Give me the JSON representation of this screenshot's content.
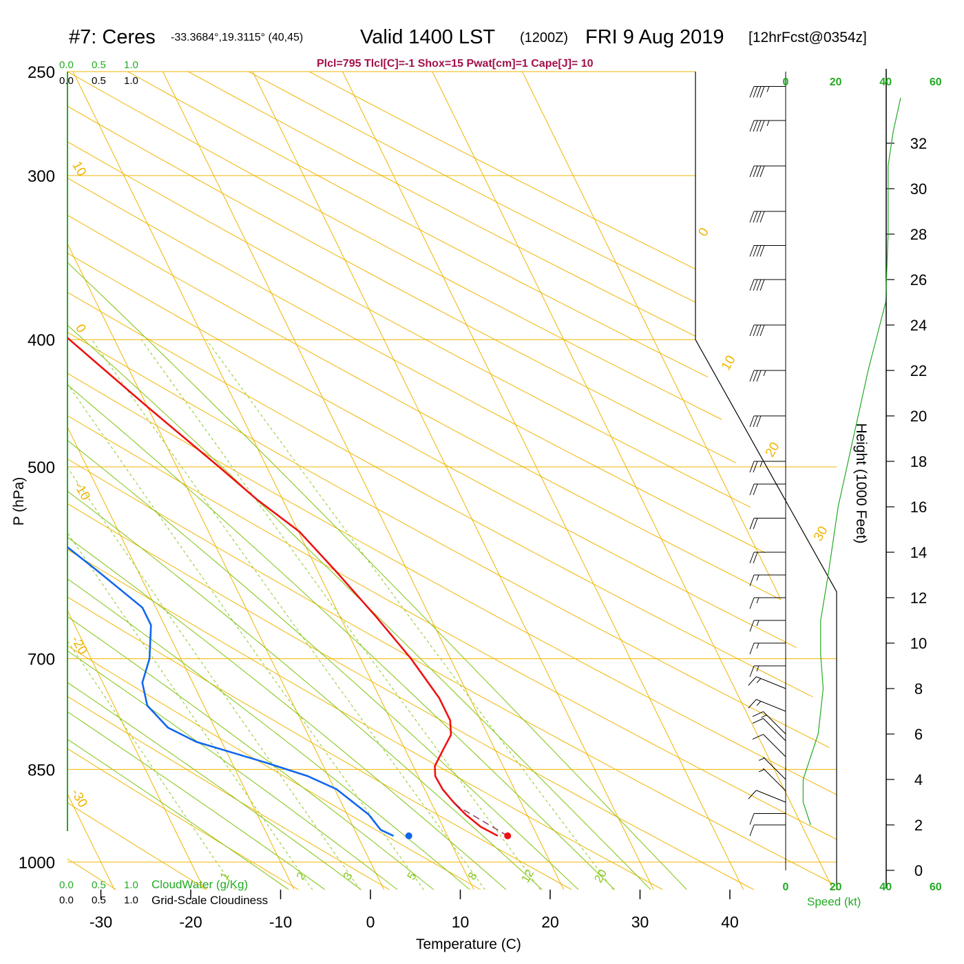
{
  "header": {
    "station": "#7: Ceres",
    "coords": "-33.3684°,19.3115° (40,45)",
    "valid": "Valid 1400 LST",
    "utc": "(1200Z)",
    "date": "FRI 9 Aug 2019",
    "forecast": "[12hrFcst@0354z]",
    "indices": "Plcl=795 Tlcl[C]=-1 Shox=15 Pwat[cm]=1 Cape[J]= 10"
  },
  "cloud_scale": {
    "ticks": [
      "0.0",
      "0.5",
      "1.0"
    ],
    "cloudwater_label": "CloudWater (g/Kg)",
    "cloudiness_label": "Grid-Scale Cloudiness"
  },
  "colors": {
    "temperature": "#ee1111",
    "dewpoint": "#1166ee",
    "isotherm_adiabat": "#f0b400",
    "moist_adiabat_mixing": "#88c820",
    "cloud_axis": "#22aa22",
    "wind_profile": "#22aa22",
    "barb": "#000000",
    "parcel": "#802050"
  },
  "chart_data": {
    "type": "skew-t",
    "xlabel": "Temperature (C)",
    "ylabel": "P (hPa)",
    "x_ticks": [
      -30,
      -20,
      -10,
      0,
      10,
      20,
      30,
      40
    ],
    "pressure_ticks": [
      250,
      300,
      400,
      500,
      700,
      850,
      1000
    ],
    "isobars": [
      250,
      300,
      400,
      500,
      700,
      850,
      1000
    ],
    "dry_adiabat_labels": [
      "10",
      "0",
      "-10",
      "-20",
      "-30",
      "0",
      "10",
      "20",
      "30"
    ],
    "mixing_ratio_labels": [
      "1",
      "2",
      "3",
      "5",
      "8",
      "12",
      "20"
    ],
    "temperature_profile": [
      {
        "p": 955,
        "t": 15.6
      },
      {
        "p": 940,
        "t": 14.2
      },
      {
        "p": 920,
        "t": 13.2
      },
      {
        "p": 900,
        "t": 12.5
      },
      {
        "p": 880,
        "t": 12.0
      },
      {
        "p": 860,
        "t": 11.9
      },
      {
        "p": 845,
        "t": 12.4
      },
      {
        "p": 820,
        "t": 14.3
      },
      {
        "p": 800,
        "t": 15.9
      },
      {
        "p": 780,
        "t": 16.6
      },
      {
        "p": 750,
        "t": 16.6
      },
      {
        "p": 700,
        "t": 15.6
      },
      {
        "p": 650,
        "t": 14.0
      },
      {
        "p": 600,
        "t": 12.0
      },
      {
        "p": 560,
        "t": 10.1
      },
      {
        "p": 530,
        "t": 7.2
      },
      {
        "p": 500,
        "t": 4.7
      },
      {
        "p": 450,
        "t": 0.0
      },
      {
        "p": 400,
        "t": -5.0
      },
      {
        "p": 350,
        "t": -10.3
      },
      {
        "p": 300,
        "t": -16.9
      },
      {
        "p": 275,
        "t": -20.7
      },
      {
        "p": 250,
        "t": -24.0
      }
    ],
    "dewpoint_profile": [
      {
        "p": 955,
        "td": 4.0
      },
      {
        "p": 945,
        "td": 2.9
      },
      {
        "p": 920,
        "td": 2.4
      },
      {
        "p": 880,
        "td": 0.2
      },
      {
        "p": 860,
        "td": -2.3
      },
      {
        "p": 840,
        "td": -6.2
      },
      {
        "p": 810,
        "td": -12.8
      },
      {
        "p": 790,
        "td": -15.2
      },
      {
        "p": 760,
        "td": -16.3
      },
      {
        "p": 730,
        "td": -15.6
      },
      {
        "p": 700,
        "td": -13.5
      },
      {
        "p": 660,
        "td": -11.5
      },
      {
        "p": 640,
        "td": -11.5
      },
      {
        "p": 600,
        "td": -14.5
      },
      {
        "p": 550,
        "td": -18.8
      },
      {
        "p": 500,
        "td": -23.9
      },
      {
        "p": 450,
        "td": -29.0
      },
      {
        "p": 400,
        "td": -34.8
      },
      {
        "p": 360,
        "td": -40.7
      },
      {
        "p": 345,
        "td": -43.7
      },
      {
        "p": 300,
        "td": -48.4
      },
      {
        "p": 250,
        "td": -54.6
      }
    ],
    "surface_temperature": 16.7,
    "surface_dewpoint": 5.7,
    "wind_speed_axis": {
      "label": "Speed (kt)",
      "ticks": [
        0,
        20,
        40,
        60
      ]
    },
    "height_axis": {
      "label": "Height (1000 Feet)",
      "ticks": [
        0,
        2,
        4,
        6,
        8,
        10,
        12,
        14,
        16,
        18,
        20,
        22,
        24,
        26,
        28,
        30,
        32
      ]
    },
    "wind_speed_profile": [
      {
        "h": 2.0,
        "kt": 10
      },
      {
        "h": 3.0,
        "kt": 7
      },
      {
        "h": 4.0,
        "kt": 7
      },
      {
        "h": 5.0,
        "kt": 10
      },
      {
        "h": 6.0,
        "kt": 13
      },
      {
        "h": 8.0,
        "kt": 15
      },
      {
        "h": 9.5,
        "kt": 14
      },
      {
        "h": 11.0,
        "kt": 14
      },
      {
        "h": 13.0,
        "kt": 17
      },
      {
        "h": 16.0,
        "kt": 21
      },
      {
        "h": 19.0,
        "kt": 27
      },
      {
        "h": 22.0,
        "kt": 33
      },
      {
        "h": 25.0,
        "kt": 40
      },
      {
        "h": 28.0,
        "kt": 41
      },
      {
        "h": 31.0,
        "kt": 41
      },
      {
        "h": 32.5,
        "kt": 43
      },
      {
        "h": 34.0,
        "kt": 46
      }
    ],
    "wind_barbs": [
      {
        "h": 2.0,
        "kt": 10,
        "from": "W"
      },
      {
        "h": 2.5,
        "kt": 10,
        "from": "W"
      },
      {
        "h": 3.0,
        "kt": 8,
        "from": "WNW"
      },
      {
        "h": 3.5,
        "kt": 7,
        "from": "NW"
      },
      {
        "h": 4.0,
        "kt": 7,
        "from": "NW"
      },
      {
        "h": 5.0,
        "kt": 10,
        "from": "NW"
      },
      {
        "h": 5.7,
        "kt": 12,
        "from": "NW"
      },
      {
        "h": 6.0,
        "kt": 13,
        "from": "NW"
      },
      {
        "h": 7.0,
        "kt": 15,
        "from": "WNW"
      },
      {
        "h": 8.0,
        "kt": 15,
        "from": "WNW"
      },
      {
        "h": 9.0,
        "kt": 15,
        "from": "W"
      },
      {
        "h": 10.0,
        "kt": 15,
        "from": "W"
      },
      {
        "h": 11.0,
        "kt": 15,
        "from": "W"
      },
      {
        "h": 12.0,
        "kt": 15,
        "from": "W"
      },
      {
        "h": 13.0,
        "kt": 15,
        "from": "W"
      },
      {
        "h": 14.0,
        "kt": 20,
        "from": "W"
      },
      {
        "h": 15.5,
        "kt": 20,
        "from": "W"
      },
      {
        "h": 17.0,
        "kt": 20,
        "from": "W"
      },
      {
        "h": 18.0,
        "kt": 25,
        "from": "W"
      },
      {
        "h": 20.0,
        "kt": 30,
        "from": "W"
      },
      {
        "h": 22.0,
        "kt": 35,
        "from": "W"
      },
      {
        "h": 24.0,
        "kt": 40,
        "from": "W"
      },
      {
        "h": 26.0,
        "kt": 40,
        "from": "W"
      },
      {
        "h": 27.5,
        "kt": 40,
        "from": "W"
      },
      {
        "h": 29.0,
        "kt": 40,
        "from": "W"
      },
      {
        "h": 31.0,
        "kt": 40,
        "from": "W"
      },
      {
        "h": 33.0,
        "kt": 45,
        "from": "W"
      },
      {
        "h": 34.5,
        "kt": 45,
        "from": "W"
      }
    ]
  }
}
